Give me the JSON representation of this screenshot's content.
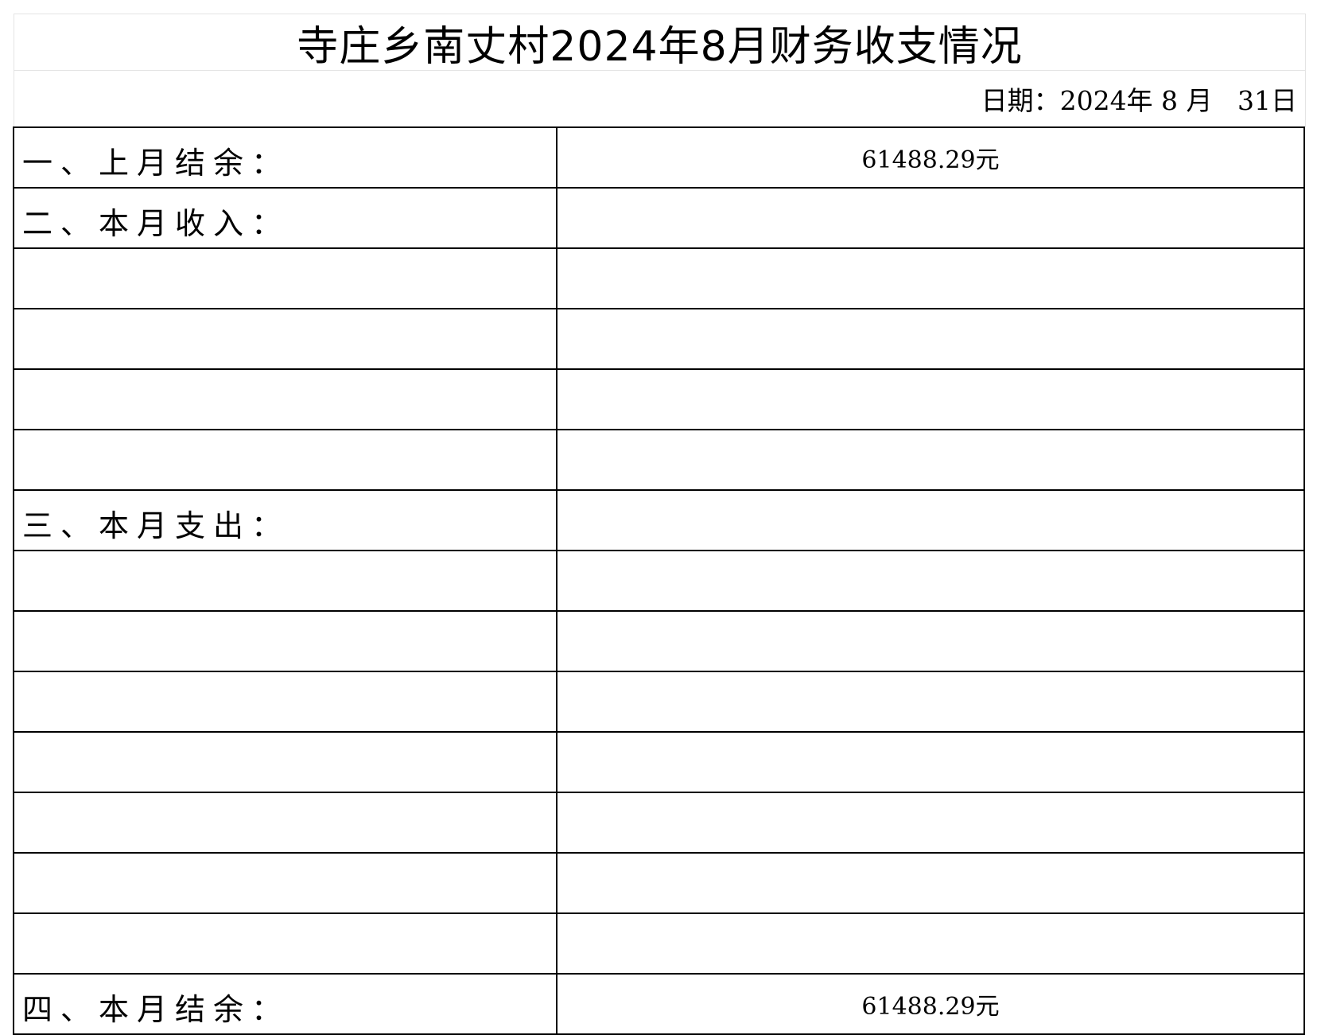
{
  "title": "寺庄乡南丈村2024年8月财务收支情况",
  "date": "日期：2024年 8 月   31日",
  "rows": [
    {
      "label": "一、上月结余：",
      "value": "61488.29元"
    },
    {
      "label": "二、本月收入：",
      "value": ""
    },
    {
      "label": "",
      "value": ""
    },
    {
      "label": "",
      "value": ""
    },
    {
      "label": "",
      "value": ""
    },
    {
      "label": "",
      "value": ""
    },
    {
      "label": "三、本月支出：",
      "value": ""
    },
    {
      "label": "",
      "value": ""
    },
    {
      "label": "",
      "value": ""
    },
    {
      "label": "",
      "value": ""
    },
    {
      "label": "",
      "value": ""
    },
    {
      "label": "",
      "value": ""
    },
    {
      "label": "",
      "value": ""
    },
    {
      "label": "",
      "value": ""
    },
    {
      "label": "四、本月结余：",
      "value": "61488.29元"
    }
  ]
}
